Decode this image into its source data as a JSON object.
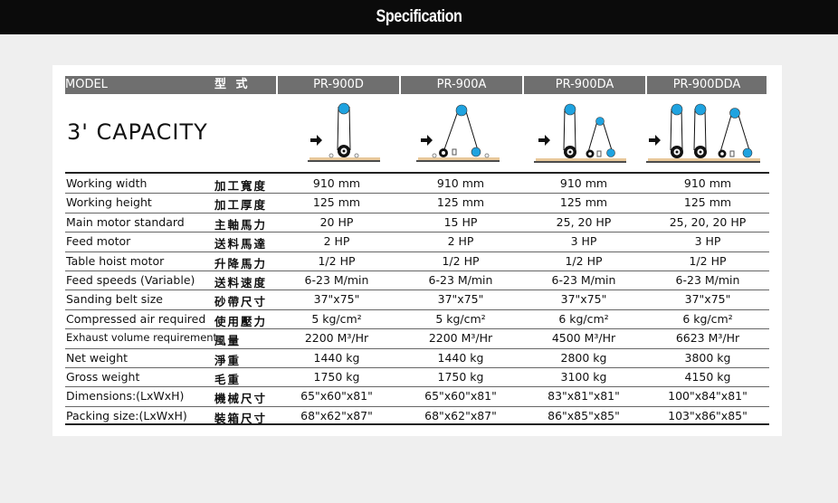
{
  "page_title": "Specification",
  "header": {
    "model_en": "MODEL",
    "model_zh": "型 式",
    "models": [
      "PR-900D",
      "PR-900A",
      "PR-900DA",
      "PR-900DDA"
    ]
  },
  "capacity": "3' CAPACITY",
  "colors": {
    "header_bg": "#6f6f6f",
    "roller_blue": "#1fa3e0",
    "topbar": "#0b0b0b"
  },
  "rows": [
    {
      "en": "Working width",
      "zh": "加工寬度",
      "values": [
        "910 mm",
        "910 mm",
        "910 mm",
        "910 mm"
      ]
    },
    {
      "en": "Working height",
      "zh": "加工厚度",
      "values": [
        "125 mm",
        "125 mm",
        "125 mm",
        "125 mm"
      ]
    },
    {
      "en": "Main motor standard",
      "zh": "主軸馬力",
      "values": [
        "20 HP",
        "15 HP",
        "25, 20 HP",
        "25, 20, 20 HP"
      ]
    },
    {
      "en": "Feed motor",
      "zh": "送料馬達",
      "values": [
        "2 HP",
        "2 HP",
        "3 HP",
        "3 HP"
      ]
    },
    {
      "en": "Table hoist motor",
      "zh": "升降馬力",
      "values": [
        "1/2 HP",
        "1/2 HP",
        "1/2 HP",
        "1/2 HP"
      ]
    },
    {
      "en": "Feed speeds (Variable)",
      "zh": "送料速度",
      "values": [
        "6-23 M/min",
        "6-23 M/min",
        "6-23 M/min",
        "6-23 M/min"
      ]
    },
    {
      "en": "Sanding belt size",
      "zh": "砂帶尺寸",
      "values": [
        "37\"x75\"",
        "37\"x75\"",
        "37\"x75\"",
        "37\"x75\""
      ]
    },
    {
      "en": "Compressed air required",
      "zh": "使用壓力",
      "values": [
        "5 kg/cm²",
        "5 kg/cm²",
        "6 kg/cm²",
        "6 kg/cm²"
      ]
    },
    {
      "en": "Exhaust volume requirement",
      "zh": "風量",
      "values": [
        "2200 M³/Hr",
        "2200 M³/Hr",
        "4500 M³/Hr",
        "6623 M³/Hr"
      ]
    },
    {
      "en": "Net weight",
      "zh": "淨重",
      "values": [
        "1440 kg",
        "1440 kg",
        "2800 kg",
        "3800 kg"
      ]
    },
    {
      "en": "Gross weight",
      "zh": "毛重",
      "values": [
        "1750 kg",
        "1750 kg",
        "3100 kg",
        "4150 kg"
      ]
    },
    {
      "en": "Dimensions:(LxWxH)",
      "zh": "機械尺寸",
      "values": [
        "65\"x60\"x81\"",
        "65\"x60\"x81\"",
        "83\"x81\"x81\"",
        "100\"x84\"x81\""
      ]
    },
    {
      "en": "Packing size:(LxWxH)",
      "zh": "裝箱尺寸",
      "values": [
        "68\"x62\"x87\"",
        "68\"x62\"x87\"",
        "86\"x85\"x85\"",
        "103\"x86\"x85\""
      ]
    }
  ]
}
